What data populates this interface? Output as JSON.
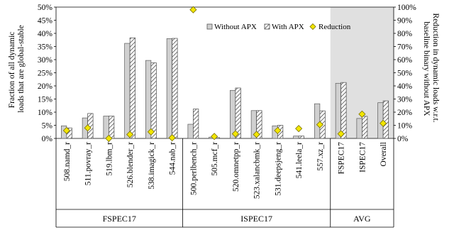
{
  "chart_data": {
    "type": "bar",
    "categories": [
      "508.namd_r",
      "511.povray_r",
      "519.lbm_r",
      "526.blender_r",
      "538.imagick_r",
      "544.nab_r",
      "500.perlbench_r",
      "505.mcf_r",
      "520.omnetpp_r",
      "523.xalancbmk_r",
      "531.deepsjeng_r",
      "541.leela_r",
      "557.xz_r",
      "FSPEC17",
      "ISPEC17",
      "Overall"
    ],
    "groups": [
      {
        "label": "FSPEC17",
        "count": 6
      },
      {
        "label": "ISPEC17",
        "count": 7
      },
      {
        "label": "AVG",
        "count": 3
      }
    ],
    "series": [
      {
        "name": "Without APX",
        "axis": "left",
        "values": [
          4.8,
          7.8,
          8.5,
          36.2,
          29.7,
          38.0,
          5.4,
          0.5,
          18.3,
          10.6,
          4.8,
          0.9,
          13.2,
          21.0,
          7.6,
          13.6
        ]
      },
      {
        "name": "With APX",
        "axis": "left",
        "values": [
          4.0,
          9.5,
          8.5,
          38.3,
          28.8,
          38.1,
          11.2,
          0.3,
          19.2,
          10.6,
          5.0,
          0.9,
          10.5,
          21.3,
          8.4,
          14.3
        ]
      },
      {
        "name": "Reduction",
        "axis": "right",
        "type": "scatter",
        "values": [
          6.0,
          8.0,
          0.0,
          3.0,
          5.0,
          0.5,
          98.0,
          1.5,
          3.5,
          3.0,
          6.0,
          7.5,
          10.5,
          3.5,
          18.5,
          11.5
        ]
      }
    ],
    "ylabel": "Fraction of all dynamic loads that are global-stable",
    "y2label": "Reduction in dynamic loads w.r.t. baseline binary without APX",
    "ylim": [
      0,
      50
    ],
    "y2lim": [
      0,
      100
    ],
    "yticks": [
      "0%",
      "5%",
      "10%",
      "15%",
      "20%",
      "25%",
      "30%",
      "35%",
      "40%",
      "45%",
      "50%"
    ],
    "y2ticks": [
      "0%",
      "10%",
      "20%",
      "30%",
      "40%",
      "50%",
      "60%",
      "70%",
      "80%",
      "90%",
      "100%"
    ],
    "legend": {
      "position": "top-right",
      "entries": [
        "Without APX",
        "With APX",
        "Reduction"
      ]
    },
    "grid": false,
    "shaded_group": "AVG",
    "colors": {
      "without": "#d0d0d0",
      "with_stroke": "#4a4a4a",
      "reduction": "#f2e600",
      "shade": "#e0e0e0"
    }
  }
}
